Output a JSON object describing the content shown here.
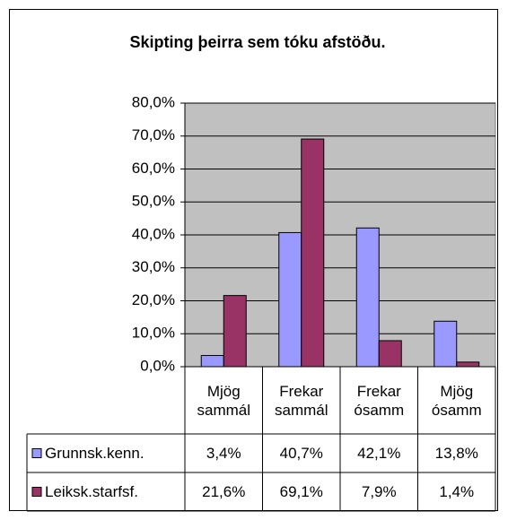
{
  "chart_data": {
    "type": "bar",
    "title": "Skipting þeirra sem tóku afstöðu.",
    "categories": [
      "Mjög sammál",
      "Frekar sammál",
      "Frekar ósamm",
      "Mjög ósamm"
    ],
    "series": [
      {
        "name": "Grunnsk.kenn.",
        "color": "#9999ff",
        "values": [
          3.4,
          40.7,
          42.1,
          13.8
        ],
        "value_labels": [
          "3,4%",
          "40,7%",
          "42,1%",
          "13,8%"
        ]
      },
      {
        "name": "Leiksk.starfsf.",
        "color": "#993366",
        "values": [
          21.6,
          69.1,
          7.9,
          1.4
        ],
        "value_labels": [
          "21,6%",
          "69,1%",
          "7,9%",
          "1,4%"
        ]
      }
    ],
    "ylim": [
      0,
      80
    ],
    "yticks": [
      {
        "value": 0,
        "label": "0,0%"
      },
      {
        "value": 10,
        "label": "10,0%"
      },
      {
        "value": 20,
        "label": "20,0%"
      },
      {
        "value": 30,
        "label": "30,0%"
      },
      {
        "value": 40,
        "label": "40,0%"
      },
      {
        "value": 50,
        "label": "50,0%"
      },
      {
        "value": 60,
        "label": "60,0%"
      },
      {
        "value": 70,
        "label": "70,0%"
      },
      {
        "value": 80,
        "label": "80,0%"
      }
    ],
    "grid": true
  }
}
